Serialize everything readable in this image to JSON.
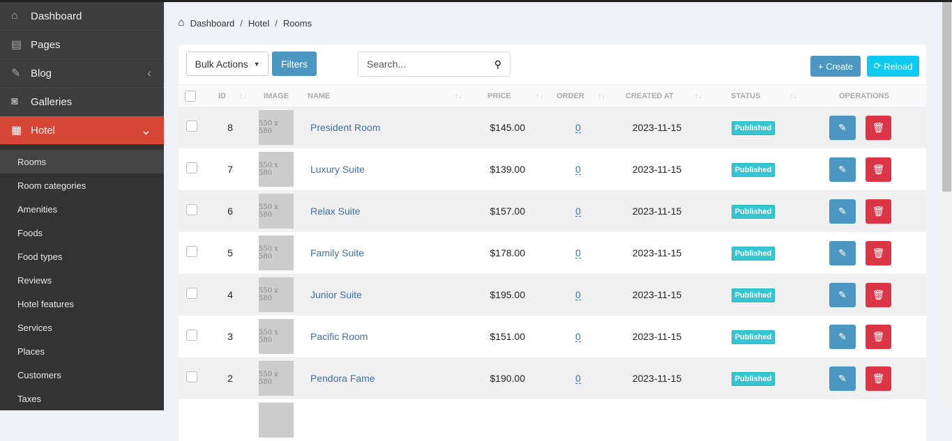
{
  "sidebar": {
    "items": [
      {
        "label": "Dashboard",
        "icon": "home-icon"
      },
      {
        "label": "Pages",
        "icon": "book-icon"
      },
      {
        "label": "Blog",
        "icon": "edit-icon"
      },
      {
        "label": "Galleries",
        "icon": "camera-icon"
      },
      {
        "label": "Hotel",
        "icon": "hotel-icon"
      }
    ],
    "submenu": [
      "Rooms",
      "Room categories",
      "Amenities",
      "Foods",
      "Food types",
      "Reviews",
      "Hotel features",
      "Services",
      "Places",
      "Customers",
      "Taxes"
    ]
  },
  "breadcrumb": [
    "Dashboard",
    "Hotel",
    "Rooms"
  ],
  "toolbar": {
    "bulk": "Bulk Actions",
    "filters": "Filters",
    "search_placeholder": "Search...",
    "create": "Create",
    "reload": "Reload"
  },
  "columns": {
    "id": "ID",
    "image": "IMAGE",
    "name": "NAME",
    "price": "PRICE",
    "order": "ORDER",
    "created": "CREATED AT",
    "status": "STATUS",
    "operations": "OPERATIONS"
  },
  "rows": [
    {
      "id": "8",
      "image": "550 x 580",
      "name": "President Room",
      "price": "$145.00",
      "order": "0",
      "created": "2023-11-15",
      "status": "Published"
    },
    {
      "id": "7",
      "image": "550 x 580",
      "name": "Luxury Suite",
      "price": "$139.00",
      "order": "0",
      "created": "2023-11-15",
      "status": "Published"
    },
    {
      "id": "6",
      "image": "550 x 580",
      "name": "Relax Suite",
      "price": "$157.00",
      "order": "0",
      "created": "2023-11-15",
      "status": "Published"
    },
    {
      "id": "5",
      "image": "550 x 580",
      "name": "Family Suite",
      "price": "$178.00",
      "order": "0",
      "created": "2023-11-15",
      "status": "Published"
    },
    {
      "id": "4",
      "image": "550 x 580",
      "name": "Junior Suite",
      "price": "$195.00",
      "order": "0",
      "created": "2023-11-15",
      "status": "Published"
    },
    {
      "id": "3",
      "image": "550 x 580",
      "name": "Pacific Room",
      "price": "$151.00",
      "order": "0",
      "created": "2023-11-15",
      "status": "Published"
    },
    {
      "id": "2",
      "image": "550 x 580",
      "name": "Pendora Fame",
      "price": "$190.00",
      "order": "0",
      "created": "2023-11-15",
      "status": "Published"
    }
  ],
  "colors": {
    "accent": "#d64635",
    "primary": "#4b97c2",
    "info": "#0dcaf0",
    "danger": "#dc3545",
    "badge": "#36c6d3"
  }
}
